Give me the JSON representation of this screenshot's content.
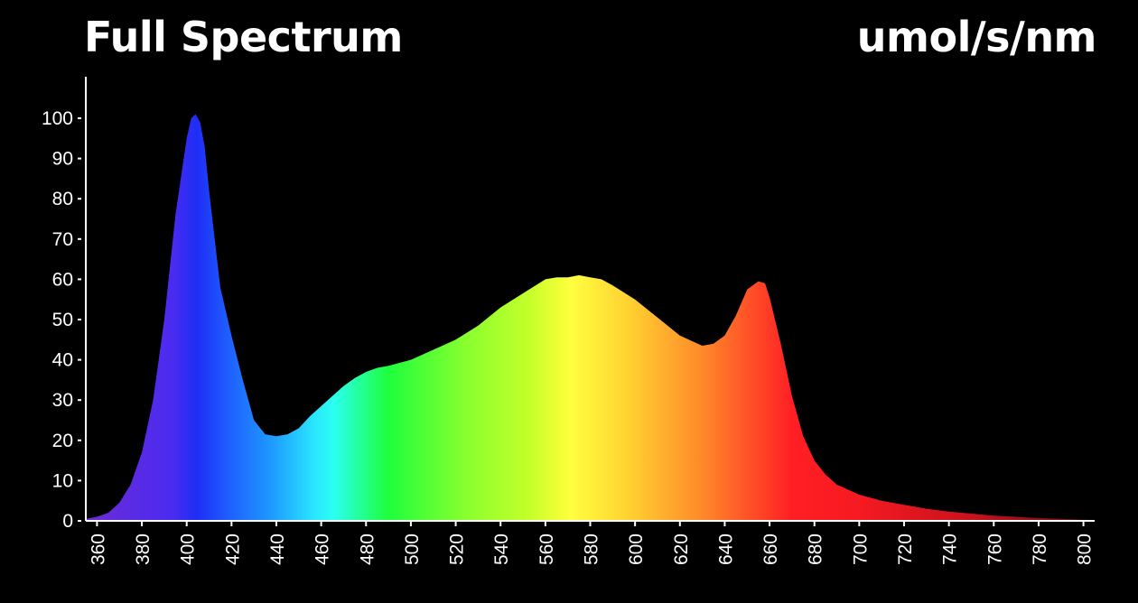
{
  "chart_data": {
    "type": "area",
    "title": "Full Spectrum",
    "unit_label": "umol/s/nm",
    "xlabel": "",
    "ylabel": "",
    "xlim": [
      355,
      805
    ],
    "ylim": [
      0,
      105
    ],
    "yticks": [
      0,
      10,
      20,
      30,
      40,
      50,
      60,
      70,
      80,
      90,
      100
    ],
    "xticks": [
      360,
      380,
      400,
      420,
      440,
      460,
      480,
      500,
      520,
      540,
      560,
      580,
      600,
      620,
      640,
      660,
      680,
      700,
      720,
      740,
      760,
      780,
      800
    ],
    "x": [
      355,
      360,
      365,
      370,
      375,
      380,
      385,
      390,
      395,
      400,
      402,
      404,
      406,
      408,
      410,
      415,
      420,
      425,
      430,
      435,
      440,
      445,
      450,
      455,
      460,
      465,
      470,
      475,
      480,
      485,
      490,
      500,
      510,
      520,
      530,
      540,
      550,
      560,
      565,
      570,
      575,
      580,
      585,
      590,
      600,
      610,
      620,
      630,
      635,
      640,
      645,
      650,
      655,
      658,
      660,
      665,
      670,
      675,
      680,
      685,
      690,
      700,
      710,
      720,
      730,
      740,
      750,
      760,
      770,
      780,
      790,
      800,
      805
    ],
    "y": [
      0.5,
      1,
      2,
      4.5,
      9,
      17,
      30,
      50,
      76,
      95,
      100,
      101,
      99,
      93,
      82,
      58,
      46,
      35,
      25,
      21.5,
      21,
      21.5,
      23,
      26,
      28.5,
      31,
      33.5,
      35.5,
      37,
      38,
      38.5,
      40,
      42.5,
      45,
      48.5,
      53,
      56.5,
      60,
      60.5,
      60.5,
      61,
      60.5,
      60,
      58.5,
      55,
      50.5,
      46,
      43.5,
      44,
      46,
      51,
      57.5,
      59.5,
      59,
      55.5,
      44,
      31,
      21,
      15,
      11.5,
      9,
      6.5,
      5,
      4,
      3,
      2.3,
      1.8,
      1.3,
      1,
      0.7,
      0.5,
      0.3,
      0.2
    ],
    "fill": "visible-spectrum-gradient",
    "background": "#000000",
    "grid": false,
    "legend": "none"
  }
}
